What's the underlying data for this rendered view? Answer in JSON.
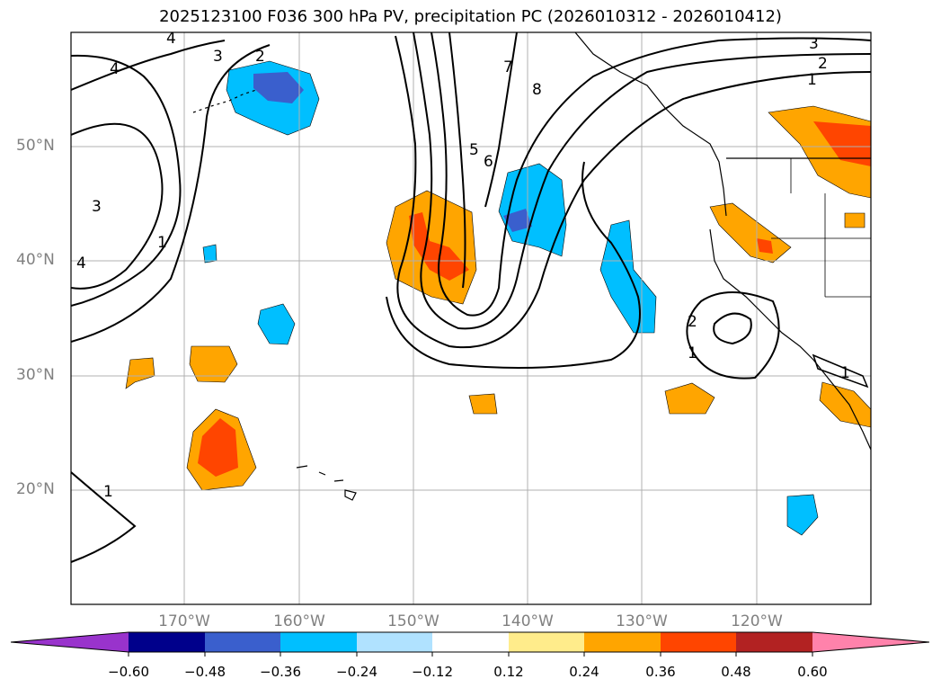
{
  "title": "2025123100 F036 300 hPa PV, precipitation PC (2026010312 - 2026010412)",
  "lat_labels": [
    "50°N",
    "40°N",
    "30°N",
    "20°N"
  ],
  "lon_labels": [
    "170°W",
    "160°W",
    "150°W",
    "140°W",
    "130°W",
    "120°W"
  ],
  "contour_labels": [
    "4",
    "3",
    "2",
    "4",
    "3",
    "4",
    "1",
    "7",
    "8",
    "5",
    "6",
    "3",
    "2",
    "1",
    "2",
    "1",
    "1",
    "1"
  ],
  "colorbar": {
    "ticks": [
      "−0.60",
      "−0.48",
      "−0.36",
      "−0.24",
      "−0.12",
      "0.12",
      "0.24",
      "0.36",
      "0.48",
      "0.60"
    ],
    "colors": [
      "#9933cc",
      "#00008b",
      "#3a5fcd",
      "#00bfff",
      "#b0e2ff",
      "#ffffff",
      "#ffec8b",
      "#ffa500",
      "#ff4500",
      "#b22222",
      "#ff82ab"
    ]
  }
}
